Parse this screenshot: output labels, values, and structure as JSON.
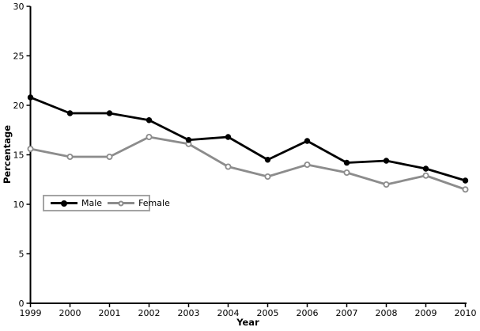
{
  "chart_data": {
    "type": "line",
    "title": "",
    "xlabel": "Year",
    "ylabel": "Percentage",
    "x": [
      "1999",
      "2000",
      "2001",
      "2002",
      "2003",
      "2004",
      "2005",
      "2006",
      "2007",
      "2008",
      "2009",
      "2010"
    ],
    "yticks": [
      0,
      5,
      10,
      15,
      20,
      25,
      30
    ],
    "ylim": [
      0,
      30
    ],
    "grid": false,
    "legend_position": "inside-middle-left",
    "series": [
      {
        "name": "Male",
        "color": "#000000",
        "marker": "filled-circle",
        "values": [
          20.8,
          19.2,
          19.2,
          18.5,
          16.5,
          16.8,
          14.5,
          16.4,
          14.2,
          14.4,
          13.6,
          12.4
        ]
      },
      {
        "name": "Female",
        "color": "#8c8c8c",
        "marker": "open-circle",
        "values": [
          15.6,
          14.8,
          14.8,
          16.8,
          16.1,
          13.8,
          12.8,
          14.0,
          13.2,
          12.0,
          12.9,
          11.5
        ]
      }
    ]
  }
}
